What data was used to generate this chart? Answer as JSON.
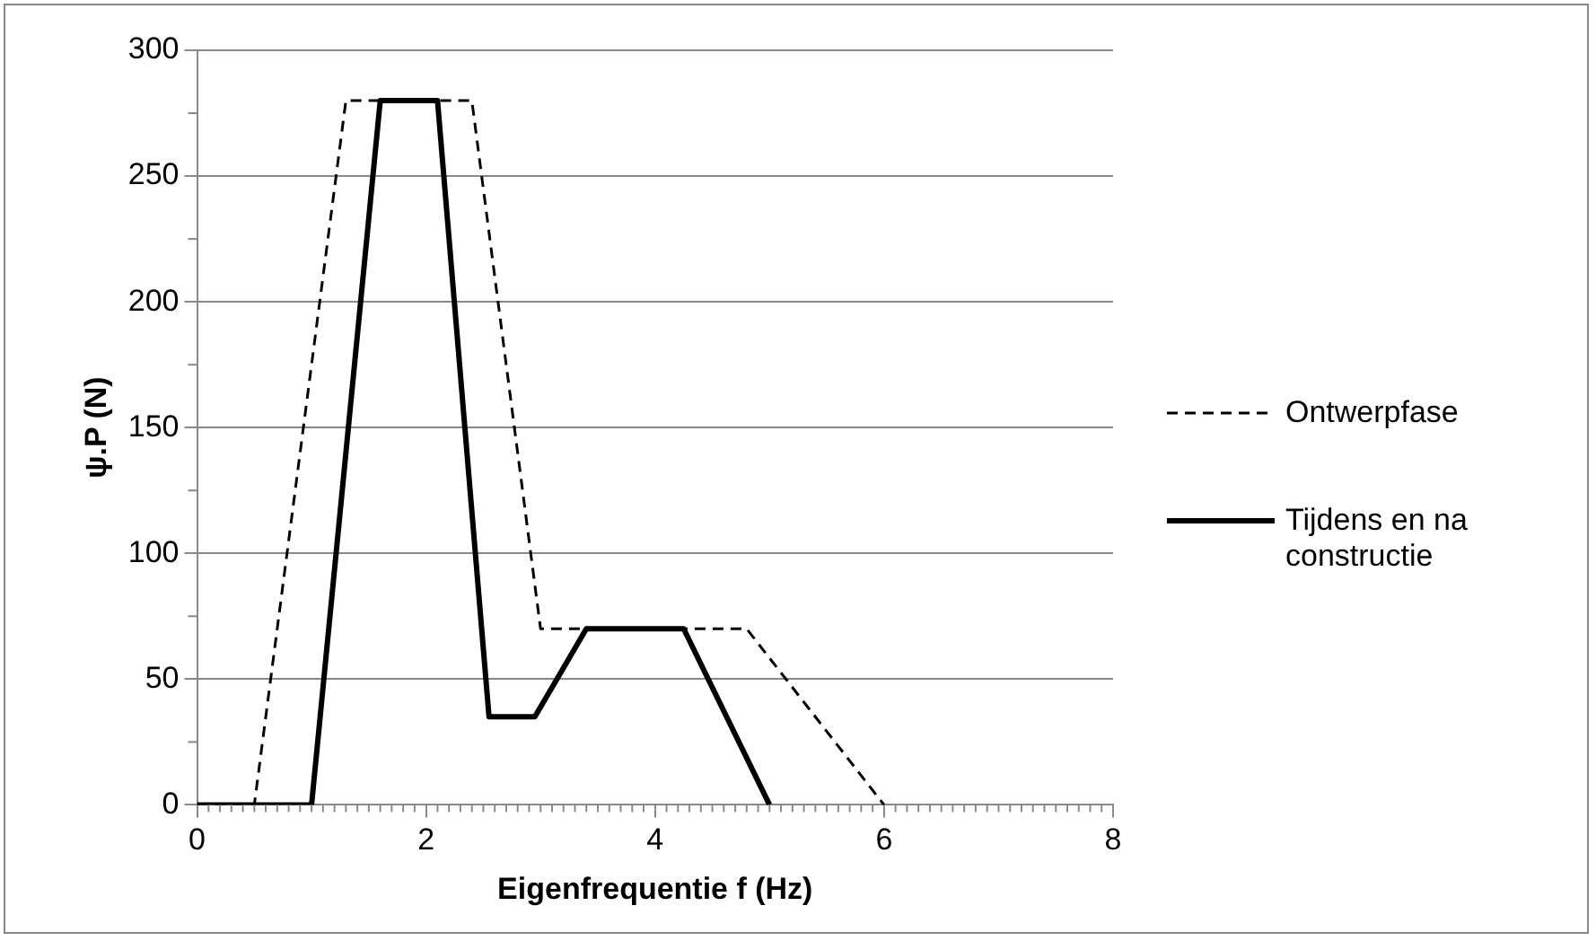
{
  "chart_data": {
    "type": "line",
    "xlabel": "Eigenfrequentie f (Hz)",
    "ylabel": "ψ.P (N)",
    "xlim": [
      0,
      8
    ],
    "xticks": [
      0,
      2,
      4,
      6,
      8
    ],
    "ylim": [
      0,
      300
    ],
    "yticks": [
      0,
      50,
      100,
      150,
      200,
      250,
      300
    ],
    "grid": "y",
    "legend": "right",
    "marker": "none",
    "series": [
      {
        "name": "Ontwerpfase",
        "color": "#000000",
        "line_style": "dashed",
        "x": [
          0,
          0.5,
          1.3,
          2.4,
          3,
          4.8,
          6
        ],
        "values": [
          0,
          0,
          280,
          280,
          70,
          70,
          0
        ]
      },
      {
        "name": "Tijdens en na constructie",
        "color": "#000000",
        "line_style": "solid",
        "x": [
          0,
          1,
          1.6,
          2.1,
          2.55,
          2.95,
          3.4,
          4.25,
          5
        ],
        "values": [
          0,
          0,
          280,
          280,
          35,
          35,
          70,
          70,
          0
        ]
      }
    ]
  }
}
